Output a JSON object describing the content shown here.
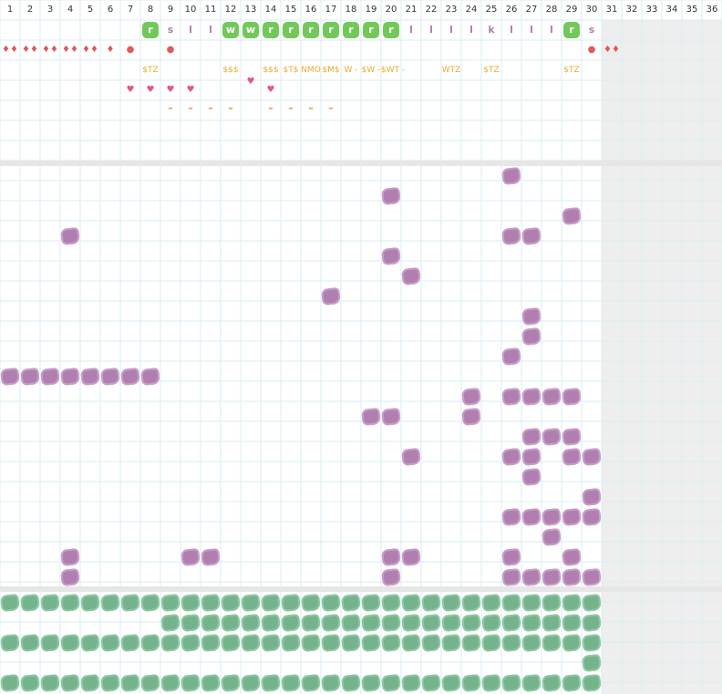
{
  "columns": [
    "1",
    "2",
    "3",
    "4",
    "5",
    "6",
    "7",
    "8",
    "9",
    "10",
    "11",
    "12",
    "13",
    "14",
    "15",
    "16",
    "17",
    "18",
    "19",
    "20",
    "21",
    "22",
    "23",
    "24",
    "25",
    "26",
    "27",
    "28",
    "29",
    "30",
    "31",
    "32",
    "33",
    "34",
    "35",
    "36"
  ],
  "colors": {
    "grid_line": "#d9eef2",
    "section_divider": "#e6e6e6",
    "inactive_column_bg": "#eeeeee",
    "purple_blob": "#b07fb0",
    "green_blob": "#74b38b",
    "green_letter_box": "#73c85a",
    "tag_text": "#f0a830",
    "drop": "#e05a5a",
    "heart": "#e05a80"
  },
  "top_rows": {
    "letters": [
      {
        "col": 8,
        "text": "r",
        "boxed": true
      },
      {
        "col": 9,
        "text": "s",
        "boxed": false
      },
      {
        "col": 10,
        "text": "l",
        "boxed": false
      },
      {
        "col": 11,
        "text": "l",
        "boxed": false
      },
      {
        "col": 12,
        "text": "w",
        "boxed": true
      },
      {
        "col": 13,
        "text": "w",
        "boxed": true
      },
      {
        "col": 14,
        "text": "r",
        "boxed": true
      },
      {
        "col": 15,
        "text": "r",
        "boxed": true
      },
      {
        "col": 16,
        "text": "r",
        "boxed": true
      },
      {
        "col": 17,
        "text": "r",
        "boxed": true
      },
      {
        "col": 18,
        "text": "r",
        "boxed": true
      },
      {
        "col": 19,
        "text": "r",
        "boxed": true
      },
      {
        "col": 20,
        "text": "r",
        "boxed": true
      },
      {
        "col": 21,
        "text": "l",
        "boxed": false
      },
      {
        "col": 22,
        "text": "l",
        "boxed": false
      },
      {
        "col": 23,
        "text": "l",
        "boxed": false
      },
      {
        "col": 24,
        "text": "l",
        "boxed": false
      },
      {
        "col": 25,
        "text": "k",
        "boxed": false
      },
      {
        "col": 26,
        "text": "l",
        "boxed": false
      },
      {
        "col": 27,
        "text": "l",
        "boxed": false
      },
      {
        "col": 28,
        "text": "l",
        "boxed": false
      },
      {
        "col": 29,
        "text": "r",
        "boxed": true
      },
      {
        "col": 30,
        "text": "s",
        "boxed": false
      }
    ],
    "drops": [
      {
        "col": 1,
        "text": "♦♦"
      },
      {
        "col": 2,
        "text": "♦♦"
      },
      {
        "col": 3,
        "text": "♦♦"
      },
      {
        "col": 4,
        "text": "♦♦"
      },
      {
        "col": 5,
        "text": "♦♦"
      },
      {
        "col": 6,
        "text": "♦"
      },
      {
        "col": 7,
        "text": "●"
      },
      {
        "col": 9,
        "text": "●"
      },
      {
        "col": 30,
        "text": "●"
      },
      {
        "col": 31,
        "text": "♦♦"
      }
    ],
    "tags": [
      {
        "col": 8,
        "text": "$TZ"
      },
      {
        "col": 12,
        "text": "$$$"
      },
      {
        "col": 14,
        "text": "$$$"
      },
      {
        "col": 15,
        "text": "$T$"
      },
      {
        "col": 16,
        "text": "NMO"
      },
      {
        "col": 17,
        "text": "$M$"
      },
      {
        "col": 18,
        "text": "W -"
      },
      {
        "col": 19,
        "text": "$W -"
      },
      {
        "col": 20,
        "text": "$WT -"
      },
      {
        "col": 23,
        "text": "WTZ"
      },
      {
        "col": 25,
        "text": "$TZ"
      },
      {
        "col": 29,
        "text": "$TZ"
      }
    ],
    "hearts": [
      {
        "col": 7,
        "row": 4
      },
      {
        "col": 8,
        "row": 4
      },
      {
        "col": 9,
        "row": 4
      },
      {
        "col": 10,
        "row": 4
      },
      {
        "col": 13,
        "row": 3.6
      },
      {
        "col": 14,
        "row": 4
      }
    ],
    "dashes": [
      9,
      10,
      11,
      12,
      14,
      15,
      16,
      17
    ]
  },
  "purple_blobs": [
    [
      26,
      8
    ],
    [
      20,
      9
    ],
    [
      29,
      10
    ],
    [
      4,
      11
    ],
    [
      26,
      11
    ],
    [
      27,
      11
    ],
    [
      20,
      12
    ],
    [
      21,
      13
    ],
    [
      17,
      14
    ],
    [
      27,
      15
    ],
    [
      27,
      16
    ],
    [
      26,
      17
    ],
    [
      1,
      18
    ],
    [
      2,
      18
    ],
    [
      3,
      18
    ],
    [
      4,
      18
    ],
    [
      5,
      18
    ],
    [
      6,
      18
    ],
    [
      7,
      18
    ],
    [
      8,
      18
    ],
    [
      24,
      19
    ],
    [
      26,
      19
    ],
    [
      27,
      19
    ],
    [
      28,
      19
    ],
    [
      29,
      19
    ],
    [
      19,
      20
    ],
    [
      20,
      20
    ],
    [
      24,
      20
    ],
    [
      27,
      21
    ],
    [
      28,
      21
    ],
    [
      29,
      21
    ],
    [
      21,
      22
    ],
    [
      26,
      22
    ],
    [
      27,
      22
    ],
    [
      29,
      22
    ],
    [
      30,
      22
    ],
    [
      27,
      23
    ],
    [
      30,
      24
    ],
    [
      26,
      25
    ],
    [
      27,
      25
    ],
    [
      28,
      25
    ],
    [
      29,
      25
    ],
    [
      30,
      25
    ],
    [
      28,
      26
    ],
    [
      4,
      27
    ],
    [
      10,
      27
    ],
    [
      11,
      27
    ],
    [
      20,
      27
    ],
    [
      21,
      27
    ],
    [
      26,
      27
    ],
    [
      29,
      27
    ],
    [
      4,
      28
    ],
    [
      20,
      28
    ],
    [
      26,
      28
    ],
    [
      27,
      28
    ],
    [
      28,
      28
    ],
    [
      29,
      28
    ],
    [
      30,
      28
    ]
  ],
  "green_rows": [
    {
      "row": 29,
      "from": 1,
      "to": 30
    },
    {
      "row": 30,
      "from": 9,
      "to": 30
    },
    {
      "row": 31,
      "from": 1,
      "to": 30
    },
    {
      "row": 32,
      "from": 30,
      "to": 30
    },
    {
      "row": 33,
      "from": 1,
      "to": 30
    }
  ]
}
